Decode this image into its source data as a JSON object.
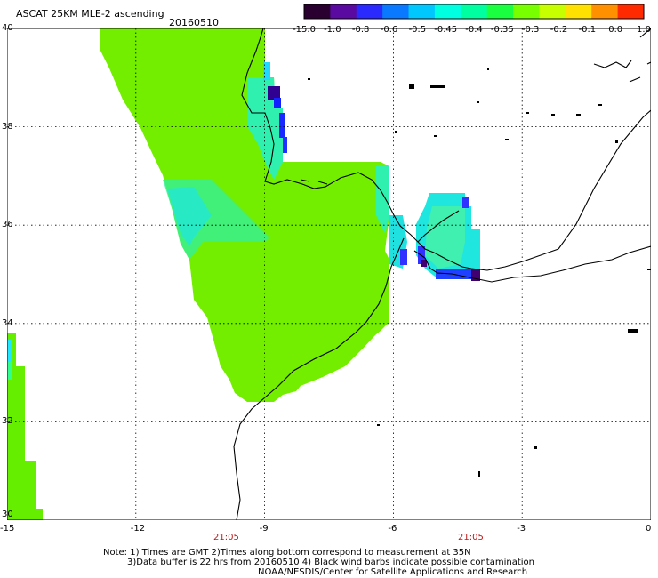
{
  "header": {
    "title": "ASCAT 25KM MLE-2 ascending",
    "date": "20160510"
  },
  "colorbar": {
    "ticks": [
      "-15.0",
      "-1.0",
      "-0.8",
      "-0.6",
      "-0.5",
      "-0.45",
      "-0.4",
      "-0.35",
      "-0.3",
      "-0.2",
      "-0.1",
      "0.0",
      "1.0"
    ],
    "colors": [
      "#2a0030",
      "#5a0aa0",
      "#2a2aff",
      "#0a78ff",
      "#00c8ff",
      "#00ffe0",
      "#00ffa0",
      "#1aff40",
      "#78ff00",
      "#c8ff00",
      "#ffe000",
      "#ff9000",
      "#ff2a00"
    ]
  },
  "axes": {
    "x_ticks": [
      "-15",
      "-12",
      "-9",
      "-6",
      "-3",
      "0"
    ],
    "y_ticks": [
      "40",
      "38",
      "36",
      "34",
      "32",
      "30"
    ],
    "time_labels": [
      "21:05",
      "21:05"
    ]
  },
  "notes": [
    "Note: 1) Times are GMT 2)Times along bottom correspond to measurement at 35N",
    "3)Data buffer is 22 hrs from 20160510 4) Black wind barbs indicate possible contamination",
    "NOAA/NESDIS/Center for Satellite Applications and Research"
  ],
  "map": {
    "lon_range": [
      -15,
      0
    ],
    "lat_range": [
      30,
      40
    ],
    "data_fill_color": "#7cf000",
    "data_fill_color_dark": "#60e020",
    "edge_color_cyan": "#20ffd0",
    "edge_color_blue": "#2040ff",
    "edge_color_purple": "#400080",
    "coastline_color": "#000000"
  }
}
